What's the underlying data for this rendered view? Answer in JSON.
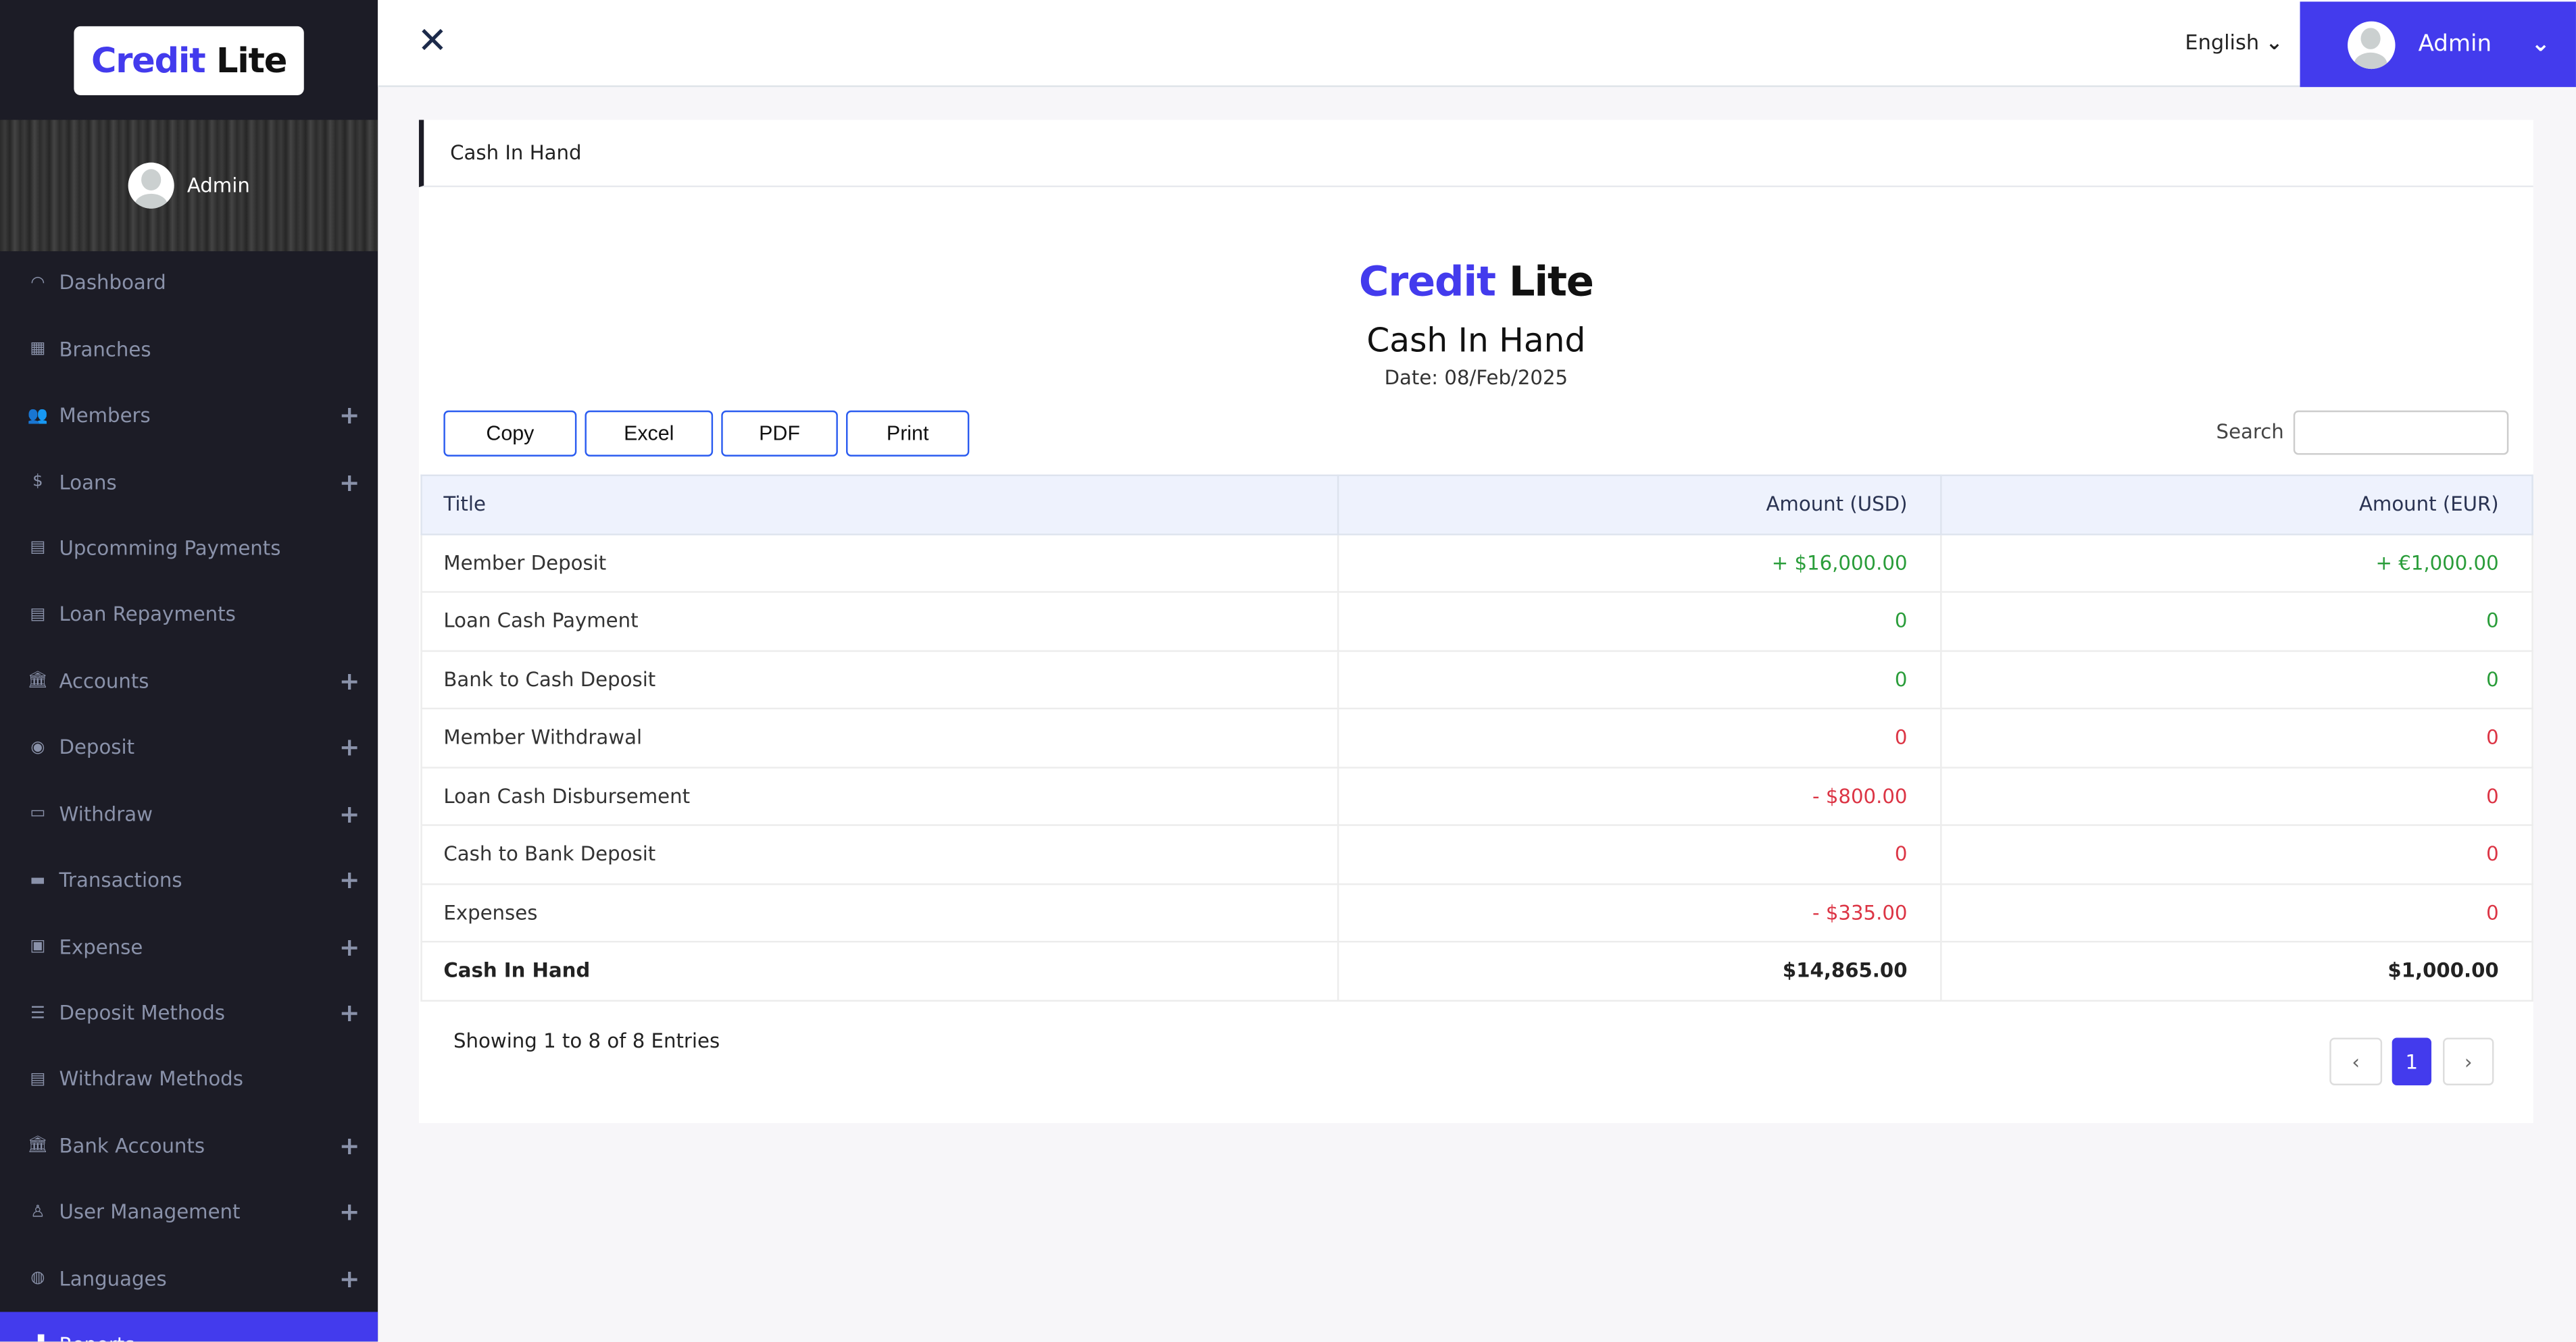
{
  "brand": {
    "part1": "Credit",
    "part2": "Lite"
  },
  "sidebar": {
    "user": "Admin",
    "items": [
      {
        "label": "Dashboard",
        "icon": "dashboard-icon",
        "glyph": "◠",
        "expandable": false
      },
      {
        "label": "Branches",
        "icon": "building-icon",
        "glyph": "▦",
        "expandable": false
      },
      {
        "label": "Members",
        "icon": "users-icon",
        "glyph": "👥",
        "expandable": true
      },
      {
        "label": "Loans",
        "icon": "hand-dollar-icon",
        "glyph": "$",
        "expandable": true
      },
      {
        "label": "Upcomming Payments",
        "icon": "calendar-icon",
        "glyph": "▤",
        "expandable": false
      },
      {
        "label": "Loan Repayments",
        "icon": "receipt-icon",
        "glyph": "▤",
        "expandable": false
      },
      {
        "label": "Accounts",
        "icon": "bank-icon",
        "glyph": "🏛",
        "expandable": true
      },
      {
        "label": "Deposit",
        "icon": "coins-icon",
        "glyph": "◉",
        "expandable": true
      },
      {
        "label": "Withdraw",
        "icon": "card-icon",
        "glyph": "▭",
        "expandable": true
      },
      {
        "label": "Transactions",
        "icon": "wallet-icon",
        "glyph": "▬",
        "expandable": true
      },
      {
        "label": "Expense",
        "icon": "money-icon",
        "glyph": "▣",
        "expandable": true
      },
      {
        "label": "Deposit Methods",
        "icon": "list-icon",
        "glyph": "☰",
        "expandable": true
      },
      {
        "label": "Withdraw Methods",
        "icon": "clipboard-icon",
        "glyph": "▤",
        "expandable": false
      },
      {
        "label": "Bank Accounts",
        "icon": "bank-icon",
        "glyph": "🏛",
        "expandable": true
      },
      {
        "label": "User Management",
        "icon": "user-icon",
        "glyph": "♙",
        "expandable": true
      },
      {
        "label": "Languages",
        "icon": "globe-icon",
        "glyph": "◍",
        "expandable": true
      },
      {
        "label": "Reports",
        "icon": "chart-icon",
        "glyph": "▟",
        "expandable": false,
        "active": true
      }
    ]
  },
  "topbar": {
    "close_glyph": "✕",
    "language": "English",
    "user": "Admin",
    "chevron": "⌄"
  },
  "breadcrumb": "Cash In Hand",
  "report": {
    "title": "Cash In Hand",
    "date": "Date: 08/Feb/2025",
    "buttons": [
      "Copy",
      "Excel",
      "PDF",
      "Print"
    ],
    "search_label": "Search",
    "search_value": "",
    "columns": [
      "Title",
      "Amount (USD)",
      "Amount (EUR)"
    ],
    "rows": [
      {
        "title": "Member Deposit",
        "usd": "+ $16,000.00",
        "eur": "+ €1,000.00",
        "tone": "pos"
      },
      {
        "title": "Loan Cash Payment",
        "usd": "0",
        "eur": "0",
        "tone": "pos"
      },
      {
        "title": "Bank to Cash Deposit",
        "usd": "0",
        "eur": "0",
        "tone": "pos"
      },
      {
        "title": "Member Withdrawal",
        "usd": "0",
        "eur": "0",
        "tone": "neg"
      },
      {
        "title": "Loan Cash Disbursement",
        "usd": "- $800.00",
        "eur": "0",
        "tone": "neg"
      },
      {
        "title": "Cash to Bank Deposit",
        "usd": "0",
        "eur": "0",
        "tone": "neg"
      },
      {
        "title": "Expenses",
        "usd": "- $335.00",
        "eur": "0",
        "tone": "neg"
      }
    ],
    "total": {
      "title": "Cash In Hand",
      "usd": "$14,865.00",
      "eur": "$1,000.00"
    },
    "showing": "Showing 1 to 8 of 8 Entries",
    "pagination": {
      "prev": "‹",
      "current": "1",
      "next": "›"
    }
  },
  "colors": {
    "accent": "#433bed",
    "sidebar_bg": "#1c1c26",
    "positive": "#2a9d3a",
    "negative": "#dc3545"
  }
}
